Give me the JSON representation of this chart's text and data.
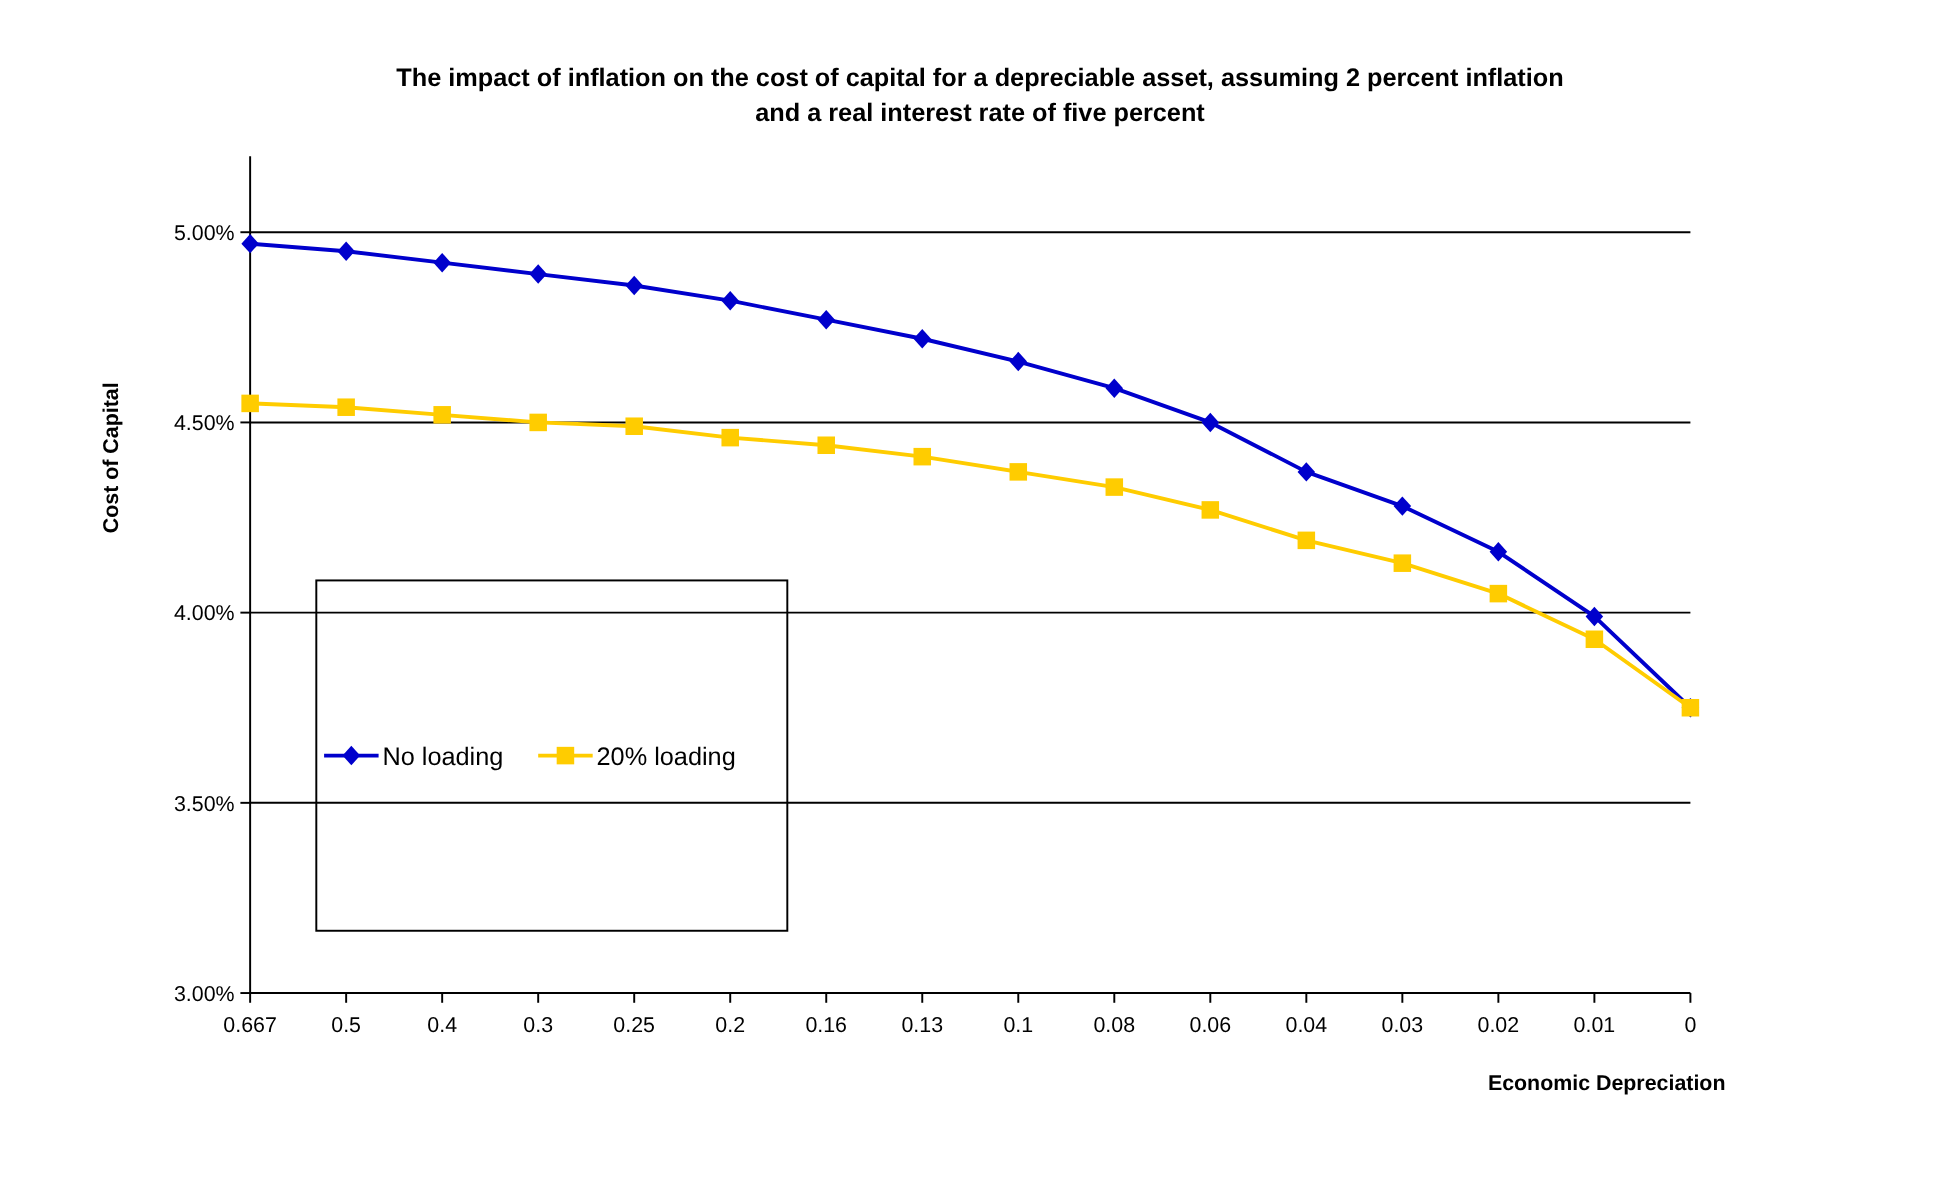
{
  "chart_data": {
    "type": "line",
    "title": "The impact of inflation on the cost of capital for a depreciable asset, assuming 2 percent inflation and a real interest rate of five percent",
    "xlabel": "Economic Depreciation",
    "ylabel": "Cost of Capital",
    "categories": [
      "0.667",
      "0.5",
      "0.4",
      "0.3",
      "0.25",
      "0.2",
      "0.16",
      "0.13",
      "0.1",
      "0.08",
      "0.06",
      "0.04",
      "0.03",
      "0.02",
      "0.01",
      "0"
    ],
    "series": [
      {
        "name": "No loading",
        "color": "#0000cc",
        "marker": "diamond",
        "values": [
          4.97,
          4.95,
          4.92,
          4.89,
          4.86,
          4.82,
          4.77,
          4.72,
          4.66,
          4.59,
          4.5,
          4.37,
          4.28,
          4.16,
          3.99,
          3.75
        ]
      },
      {
        "name": "20% loading",
        "color": "#ffcc00",
        "marker": "square",
        "values": [
          4.55,
          4.54,
          4.52,
          4.5,
          4.49,
          4.46,
          4.44,
          4.41,
          4.37,
          4.33,
          4.27,
          4.19,
          4.13,
          4.05,
          3.93,
          3.75
        ]
      }
    ],
    "ylim": [
      3,
      5.2
    ],
    "yticks": [
      {
        "value": 3,
        "label": "3.00%"
      },
      {
        "value": 3.5,
        "label": "3.50%"
      },
      {
        "value": 4,
        "label": "4.00%"
      },
      {
        "value": 4.5,
        "label": "4.50%"
      },
      {
        "value": 5,
        "label": "5.00%"
      }
    ],
    "grid": "y",
    "legend": "bottom left"
  }
}
